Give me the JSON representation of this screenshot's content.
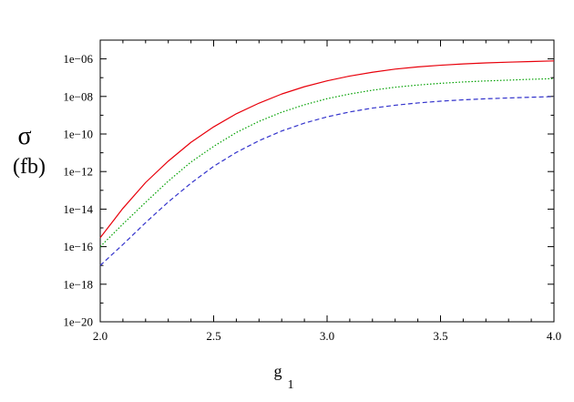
{
  "chart_data": {
    "type": "line",
    "title": "",
    "xlabel": "g",
    "xlabel_subscript": "1",
    "ylabel": "σ",
    "ylabel_unit": "(fb)",
    "xlim": [
      2.0,
      4.0
    ],
    "ylim": [
      1e-20,
      1e-05
    ],
    "y_scale": "log",
    "x_ticks": [
      "2.0",
      "2.5",
      "3.0",
      "3.5",
      "4.0"
    ],
    "y_ticks": [
      "1e−20",
      "1e−18",
      "1e−16",
      "1e−14",
      "1e−12",
      "1e−10",
      "1e−08",
      "1e−06"
    ],
    "grid": false,
    "legend": "none",
    "x": [
      2.0,
      2.1,
      2.2,
      2.3,
      2.4,
      2.5,
      2.6,
      2.7,
      2.8,
      2.9,
      3.0,
      3.1,
      3.2,
      3.3,
      3.4,
      3.5,
      3.6,
      3.7,
      3.8,
      3.9,
      4.0
    ],
    "series": [
      {
        "color": "#e8000b",
        "dash": "solid",
        "values": [
          3e-16,
          1.1e-14,
          2.6e-13,
          3.6e-12,
          3.6e-11,
          2.4e-10,
          1.2e-09,
          4.4e-09,
          1.35e-08,
          3.3e-08,
          6.8e-08,
          1.22e-07,
          1.95e-07,
          2.85e-07,
          3.75e-07,
          4.6e-07,
          5.4e-07,
          6.1e-07,
          6.7e-07,
          7.25e-07,
          7.8e-07
        ]
      },
      {
        "color": "#00a000",
        "dash": "dotted",
        "values": [
          1e-16,
          1.6e-15,
          2.3e-14,
          3.1e-13,
          3.2e-12,
          2.2e-11,
          1.2e-10,
          4.7e-10,
          1.45e-09,
          3.6e-09,
          7.6e-09,
          1.35e-08,
          2.15e-08,
          3.1e-08,
          4.05e-08,
          5e-08,
          5.9e-08,
          6.7e-08,
          7.4e-08,
          8.2e-08,
          8.9e-08
        ]
      },
      {
        "color": "#3333cc",
        "dash": "dashed",
        "values": [
          1e-17,
          1.3e-16,
          1.9e-15,
          2.4e-14,
          2.4e-13,
          1.9e-12,
          1.05e-11,
          4.4e-11,
          1.45e-10,
          3.8e-10,
          8.2e-10,
          1.5e-09,
          2.4e-09,
          3.4e-09,
          4.5e-09,
          5.6e-09,
          6.6e-09,
          7.5e-09,
          8.3e-09,
          9.1e-09,
          9.8e-09
        ]
      }
    ]
  }
}
